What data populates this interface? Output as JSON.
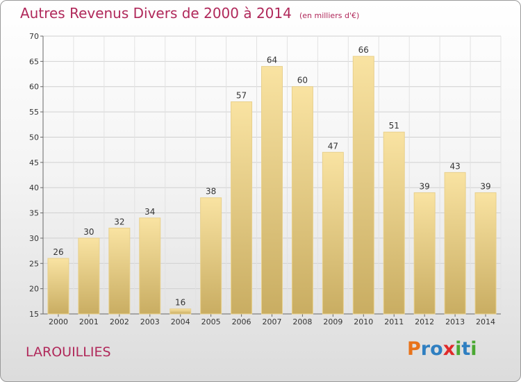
{
  "title": "Autres Revenus Divers de 2000 à 2014",
  "unit": "(en milliers d'€)",
  "commune": "LAROUILLIES",
  "logo": {
    "letters": [
      "P",
      "r",
      "o",
      "x",
      "i",
      "t",
      "i"
    ],
    "colors": [
      "#e8731a",
      "#2f7fc1",
      "#2f7fc1",
      "#e02a2a",
      "#4aa832",
      "#2f7fc1",
      "#4aa832"
    ]
  },
  "colors": {
    "title": "#b0285a",
    "bar_top": "#f9e3a2",
    "bar_bottom": "#c9ad62"
  },
  "chart_data": {
    "type": "bar",
    "title": "Autres Revenus Divers de 2000 à 2014",
    "categories": [
      "2000",
      "2001",
      "2002",
      "2003",
      "2004",
      "2005",
      "2006",
      "2007",
      "2008",
      "2009",
      "2010",
      "2011",
      "2012",
      "2013",
      "2014"
    ],
    "values": [
      26,
      30,
      32,
      34,
      16,
      38,
      57,
      64,
      60,
      47,
      66,
      51,
      39,
      43,
      39
    ],
    "ylim": [
      15,
      70
    ],
    "yticks": [
      15,
      20,
      25,
      30,
      35,
      40,
      45,
      50,
      55,
      60,
      65,
      70
    ],
    "grid": true,
    "xlabel": "",
    "ylabel": ""
  }
}
